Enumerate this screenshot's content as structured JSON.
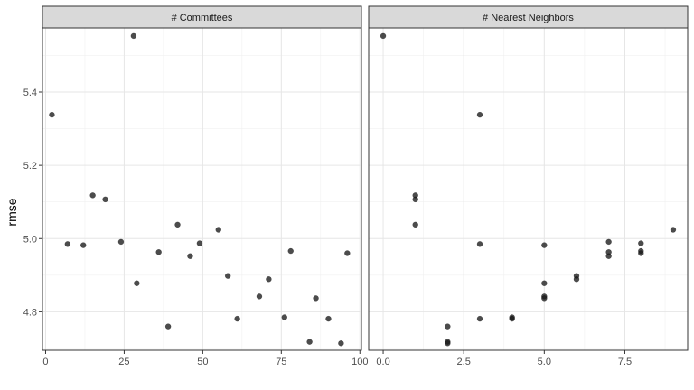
{
  "chart_data": {
    "type": "scatter",
    "ylabel": "rmse",
    "xlabel": "",
    "ylim": [
      4.695,
      5.575
    ],
    "y_ticks": [
      4.8,
      5.0,
      5.2,
      5.4
    ],
    "y_tick_labels": [
      "4.8",
      "5.0",
      "5.2",
      "5.4"
    ],
    "grid": true,
    "panels": [
      {
        "strip": "# Committees",
        "xlim": [
          -1.0,
          100.5
        ],
        "x_ticks": [
          0,
          25,
          50,
          75,
          100
        ],
        "x_tick_labels": [
          "0",
          "25",
          "50",
          "75",
          "100"
        ],
        "points": [
          {
            "x": 2,
            "y": 5.338
          },
          {
            "x": 7,
            "y": 4.985
          },
          {
            "x": 12,
            "y": 4.982
          },
          {
            "x": 15,
            "y": 5.118
          },
          {
            "x": 19,
            "y": 5.107
          },
          {
            "x": 24,
            "y": 4.991
          },
          {
            "x": 28,
            "y": 5.553
          },
          {
            "x": 29,
            "y": 4.878
          },
          {
            "x": 36,
            "y": 4.963
          },
          {
            "x": 39,
            "y": 4.76
          },
          {
            "x": 42,
            "y": 5.038
          },
          {
            "x": 46,
            "y": 4.952
          },
          {
            "x": 49,
            "y": 4.987
          },
          {
            "x": 55,
            "y": 5.024
          },
          {
            "x": 58,
            "y": 4.898
          },
          {
            "x": 61,
            "y": 4.781
          },
          {
            "x": 68,
            "y": 4.842
          },
          {
            "x": 71,
            "y": 4.889
          },
          {
            "x": 76,
            "y": 4.785
          },
          {
            "x": 78,
            "y": 4.966
          },
          {
            "x": 84,
            "y": 4.718
          },
          {
            "x": 86,
            "y": 4.837
          },
          {
            "x": 90,
            "y": 4.781
          },
          {
            "x": 94,
            "y": 4.714
          },
          {
            "x": 96,
            "y": 4.96
          }
        ]
      },
      {
        "strip": "# Nearest Neighbors",
        "xlim": [
          -0.45,
          9.45
        ],
        "x_ticks": [
          0,
          2.5,
          5,
          7.5
        ],
        "x_tick_labels": [
          "0.0",
          "2.5",
          "5.0",
          "7.5"
        ],
        "points": [
          {
            "x": 0,
            "y": 5.553
          },
          {
            "x": 1,
            "y": 5.118
          },
          {
            "x": 1,
            "y": 5.107
          },
          {
            "x": 1,
            "y": 5.038
          },
          {
            "x": 2,
            "y": 4.76
          },
          {
            "x": 2,
            "y": 4.718
          },
          {
            "x": 2,
            "y": 4.714
          },
          {
            "x": 3,
            "y": 5.338
          },
          {
            "x": 3,
            "y": 4.985
          },
          {
            "x": 3,
            "y": 4.781
          },
          {
            "x": 4,
            "y": 4.785
          },
          {
            "x": 4,
            "y": 4.781
          },
          {
            "x": 5,
            "y": 4.982
          },
          {
            "x": 5,
            "y": 4.878
          },
          {
            "x": 5,
            "y": 4.842
          },
          {
            "x": 5,
            "y": 4.837
          },
          {
            "x": 6,
            "y": 4.898
          },
          {
            "x": 6,
            "y": 4.889
          },
          {
            "x": 7,
            "y": 4.991
          },
          {
            "x": 7,
            "y": 4.963
          },
          {
            "x": 7,
            "y": 4.952
          },
          {
            "x": 8,
            "y": 4.987
          },
          {
            "x": 8,
            "y": 4.966
          },
          {
            "x": 8,
            "y": 4.96
          },
          {
            "x": 9,
            "y": 5.024
          }
        ]
      }
    ]
  }
}
